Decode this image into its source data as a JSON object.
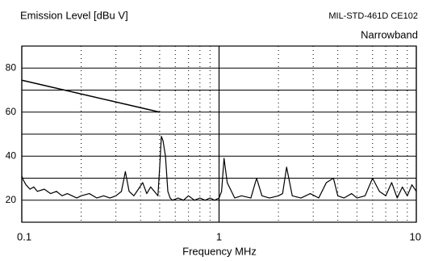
{
  "chart_data": {
    "type": "line",
    "title": "Emission Level [dBu V]",
    "subtitle": "MIL-STD-461D CE102",
    "annotation": "Narrowband",
    "x_label": "Frequency MHz",
    "xscale": "log",
    "xlim": [
      0.1,
      10
    ],
    "xticks": [
      0.1,
      1,
      10
    ],
    "x_minor_ticks": [
      0.2,
      0.3,
      0.4,
      0.5,
      0.6,
      0.7,
      0.8,
      0.9,
      2,
      3,
      4,
      5,
      6,
      7,
      8,
      9
    ],
    "ylim": [
      10,
      90
    ],
    "yticks": [
      20,
      40,
      60,
      80
    ],
    "y_minor_ticks": [
      30,
      50,
      70
    ],
    "grid": true,
    "series": [
      {
        "color": "#000000",
        "x": [
          0.1,
          0.102,
          0.105,
          0.11,
          0.115,
          0.12,
          0.13,
          0.14,
          0.15,
          0.16,
          0.17,
          0.18,
          0.19,
          0.2,
          0.22,
          0.24,
          0.26,
          0.28,
          0.3,
          0.32,
          0.335,
          0.35,
          0.37,
          0.39,
          0.41,
          0.43,
          0.45,
          0.47,
          0.49,
          0.5,
          0.51,
          0.52,
          0.535,
          0.55,
          0.565,
          0.58,
          0.62,
          0.66,
          0.7,
          0.75,
          0.8,
          0.85,
          0.9,
          0.95,
          1.0,
          1.03,
          1.06,
          1.1,
          1.2,
          1.3,
          1.45,
          1.55,
          1.65,
          1.8,
          2.0,
          2.1,
          2.2,
          2.35,
          2.6,
          2.9,
          3.2,
          3.5,
          3.8,
          4.0,
          4.3,
          4.7,
          5.0,
          5.5,
          6.0,
          6.5,
          7.0,
          7.5,
          8.0,
          8.5,
          9.0,
          9.5,
          10.0
        ],
        "values": [
          31,
          29,
          27,
          25,
          26,
          24,
          25,
          23,
          24,
          22,
          23,
          22,
          21,
          22,
          23,
          21,
          22,
          21,
          22,
          24,
          33,
          24,
          22,
          25,
          28,
          23,
          26,
          24,
          22,
          35,
          49,
          47,
          40,
          24,
          21,
          20,
          21,
          20,
          22,
          20,
          21,
          20,
          21,
          20,
          21,
          24,
          39,
          28,
          21,
          22,
          21,
          30,
          22,
          21,
          22,
          23,
          35,
          22,
          21,
          23,
          21,
          28,
          30,
          22,
          21,
          23,
          21,
          22,
          30,
          24,
          22,
          28,
          21,
          26,
          22,
          27,
          24
        ]
      },
      {
        "color": "#000000",
        "x": [
          0.1,
          0.5
        ],
        "values": [
          74.5,
          60
        ]
      }
    ]
  }
}
